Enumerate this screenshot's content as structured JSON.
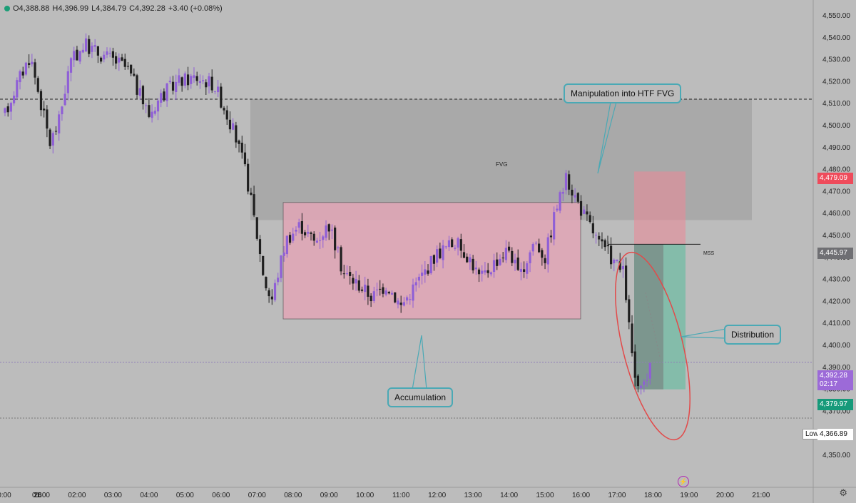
{
  "header": {
    "ohlc_o": "O4,388.88",
    "ohlc_h": "H4,396.99",
    "ohlc_l": "L4,384.79",
    "ohlc_c": "C4,392.28",
    "ohlc_change": "+3.40 (+0.08%)"
  },
  "price_tags": {
    "tag_4479": "4,479.09",
    "tag_4445": "4,445.97",
    "tag_last": "4,392.28",
    "tag_timer": "02:17",
    "tag_4379": "4,379.97",
    "low_label": "Low",
    "low_value": "4,366.89"
  },
  "annotations": {
    "fvg": "FVG",
    "mss": "MSS",
    "manipulation": "Manipulation into HTF FVG",
    "accumulation": "Accumulation",
    "distribution": "Distribution"
  },
  "colors": {
    "background": "#bcbcbc",
    "bull": "#8f5fd6",
    "bear": "#1f1f1f",
    "fvg_zone": "#a3a3a3",
    "accum_zone": "#e2a6b7",
    "stop_zone": "#e88c99",
    "target_zone": "#5fbd9f",
    "callout_border": "#4aa9b5",
    "ellipse": "#e24a4a",
    "tag_red": "#ef4b5b",
    "tag_gray": "#6f6f73",
    "tag_purple": "#9c6ad8",
    "tag_green": "#169a7a"
  },
  "icons": {
    "settings": "gear-icon",
    "alert": "lightning-icon",
    "status": "green-dot-icon"
  },
  "chart_data": {
    "type": "candlestick",
    "y_ticks": [
      4350,
      4360,
      4370,
      4380,
      4390,
      4400,
      4410,
      4420,
      4430,
      4440,
      4450,
      4460,
      4470,
      4480,
      4490,
      4500,
      4510,
      4520,
      4530,
      4540,
      4550
    ],
    "y_tick_labels": [
      "4,350.00",
      "4,360.00",
      "4,370.00",
      "4,380.00",
      "4,390.00",
      "4,400.00",
      "4,410.00",
      "4,420.00",
      "4,430.00",
      "4,440.00",
      "4,450.00",
      "4,460.00",
      "4,470.00",
      "4,480.00",
      "4,490.00",
      "4,500.00",
      "4,510.00",
      "4,520.00",
      "4,530.00",
      "4,540.00",
      "4,550.00"
    ],
    "x_ticks": [
      "0:00",
      "26",
      "01:00",
      "02:00",
      "03:00",
      "04:00",
      "05:00",
      "06:00",
      "07:00",
      "08:00",
      "09:00",
      "10:00",
      "11:00",
      "12:00",
      "13:00",
      "14:00",
      "15:00",
      "16:00",
      "17:00",
      "18:00",
      "19:00",
      "20:00",
      "21:00"
    ],
    "ylim": [
      4343,
      4557
    ],
    "hlines": [
      4512,
      4392.28,
      4366.89
    ],
    "zones": {
      "fvg": [
        4457,
        4512
      ],
      "accumulation": [
        4412,
        4465
      ],
      "stop": [
        4445.97,
        4479.09
      ],
      "target": [
        4379.97,
        4445.97
      ]
    },
    "mss_level": 4445.97,
    "anchors": [
      {
        "t": 0.0,
        "p": 4505
      },
      {
        "t": 0.3,
        "p": 4518
      },
      {
        "t": 0.7,
        "p": 4532
      },
      {
        "t": 1.0,
        "p": 4510
      },
      {
        "t": 1.25,
        "p": 4492
      },
      {
        "t": 1.5,
        "p": 4502
      },
      {
        "t": 1.8,
        "p": 4528
      },
      {
        "t": 2.2,
        "p": 4537
      },
      {
        "t": 2.6,
        "p": 4533
      },
      {
        "t": 3.0,
        "p": 4530
      },
      {
        "t": 3.4,
        "p": 4526
      },
      {
        "t": 3.8,
        "p": 4512
      },
      {
        "t": 4.0,
        "p": 4505
      },
      {
        "t": 4.3,
        "p": 4513
      },
      {
        "t": 4.8,
        "p": 4520
      },
      {
        "t": 5.3,
        "p": 4522
      },
      {
        "t": 5.8,
        "p": 4519
      },
      {
        "t": 6.1,
        "p": 4508
      },
      {
        "t": 6.4,
        "p": 4495
      },
      {
        "t": 6.7,
        "p": 4478
      },
      {
        "t": 6.95,
        "p": 4455
      },
      {
        "t": 7.2,
        "p": 4430
      },
      {
        "t": 7.4,
        "p": 4420
      },
      {
        "t": 7.8,
        "p": 4448
      },
      {
        "t": 8.2,
        "p": 4455
      },
      {
        "t": 8.6,
        "p": 4447
      },
      {
        "t": 9.0,
        "p": 4455
      },
      {
        "t": 9.4,
        "p": 4433
      },
      {
        "t": 9.8,
        "p": 4428
      },
      {
        "t": 10.2,
        "p": 4422
      },
      {
        "t": 10.6,
        "p": 4428
      },
      {
        "t": 11.0,
        "p": 4418
      },
      {
        "t": 11.5,
        "p": 4430
      },
      {
        "t": 12.0,
        "p": 4442
      },
      {
        "t": 12.5,
        "p": 4447
      },
      {
        "t": 12.9,
        "p": 4440
      },
      {
        "t": 13.2,
        "p": 4430
      },
      {
        "t": 13.6,
        "p": 4438
      },
      {
        "t": 14.0,
        "p": 4444
      },
      {
        "t": 14.3,
        "p": 4430
      },
      {
        "t": 14.7,
        "p": 4448
      },
      {
        "t": 15.0,
        "p": 4440
      },
      {
        "t": 15.3,
        "p": 4462
      },
      {
        "t": 15.6,
        "p": 4476
      },
      {
        "t": 16.0,
        "p": 4462
      },
      {
        "t": 16.3,
        "p": 4453
      },
      {
        "t": 16.5,
        "p": 4446
      },
      {
        "t": 16.8,
        "p": 4441
      },
      {
        "t": 17.2,
        "p": 4432
      },
      {
        "t": 17.35,
        "p": 4405
      },
      {
        "t": 17.5,
        "p": 4385
      },
      {
        "t": 17.62,
        "p": 4376
      },
      {
        "t": 17.8,
        "p": 4385
      },
      {
        "t": 18.0,
        "p": 4392
      }
    ]
  }
}
